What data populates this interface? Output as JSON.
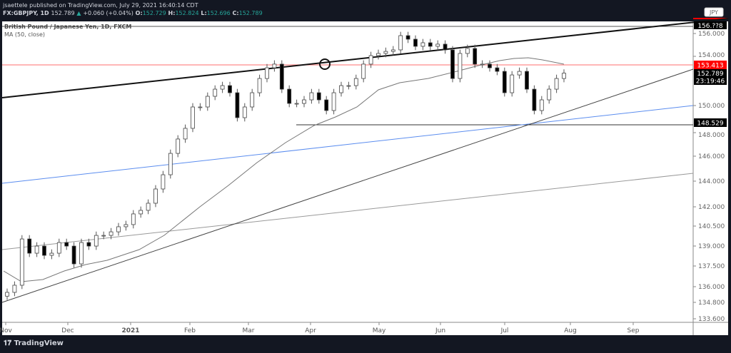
{
  "header": {
    "publisher": "jsaettele published on TradingView.com, July 29, 2021 16:40:14 CDT",
    "symbol": "FX:GBPJPY, 1D",
    "last": "152.789",
    "change": "+0.060 (+0.04%)",
    "open_label": "O:",
    "open": "152.729",
    "high_label": "H:",
    "high": "152.824",
    "low_label": "L:",
    "low": "152.696",
    "close_label": "C:",
    "close": "152.789"
  },
  "legend": {
    "title": "British Pound / Japanese Yen, 1D, FXCM",
    "indicator": "MA (50, close)"
  },
  "footer": {
    "brand": "TradingView"
  },
  "colors": {
    "up": "#ffffff",
    "down": "#000000",
    "resistance": "#ff0000",
    "blue_line": "#2962ff",
    "ma": "#777777"
  },
  "chart_data": {
    "type": "candlestick",
    "title": "British Pound / Japanese Yen, 1D, FXCM",
    "currency": "JPY",
    "x_labels": [
      "Nov",
      "Dec",
      "2021",
      "Feb",
      "Mar",
      "Apr",
      "May",
      "Jun",
      "Jul",
      "Aug",
      "Sep"
    ],
    "y_ticks": [
      "156.000",
      "154.000",
      "150.000",
      "148.000",
      "146.000",
      "144.000",
      "142.000",
      "140.500",
      "139.000",
      "137.500",
      "136.000",
      "134.800",
      "133.600"
    ],
    "ylim": [
      133.2,
      156.8
    ],
    "closes": [
      135.55,
      136.11,
      139.75,
      138.63,
      139.19,
      138.46,
      138.63,
      139.47,
      139.19,
      137.79,
      139.47,
      139.19,
      140.03,
      140.03,
      140.31,
      140.71,
      140.88,
      141.72,
      142.0,
      142.56,
      143.68,
      144.8,
      146.48,
      147.61,
      148.45,
      150.13,
      150.13,
      150.97,
      151.53,
      151.81,
      151.25,
      149.29,
      150.13,
      151.25,
      152.37,
      153.21,
      153.5,
      151.53,
      150.41,
      150.41,
      150.69,
      151.25,
      150.69,
      149.85,
      151.25,
      151.81,
      151.81,
      152.37,
      153.5,
      154.17,
      154.34,
      154.5,
      154.62,
      155.74,
      155.46,
      154.9,
      155.18,
      154.9,
      155.07,
      154.62,
      152.37,
      154.34,
      154.73,
      153.5,
      153.5,
      153.21,
      152.93,
      151.25,
      152.65,
      152.93,
      151.53,
      149.85,
      150.69,
      151.53,
      152.37,
      152.789
    ],
    "levels": {
      "resistance": "153.413",
      "support": "148.529",
      "top_level": "156.??8",
      "last_price": "152.789",
      "countdown": "23:19:46"
    }
  }
}
